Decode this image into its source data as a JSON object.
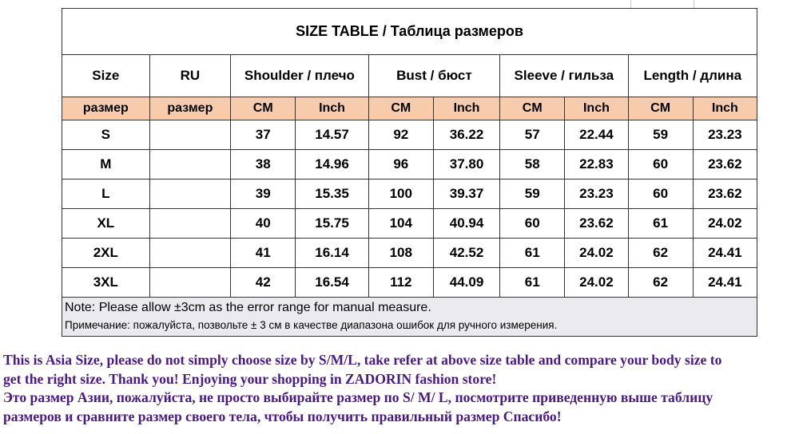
{
  "title": "SIZE TABLE  / Таблица размеров",
  "headers": [
    "Size",
    "RU",
    "Shoulder / плечо",
    "Bust / бюст",
    "Sleeve / гильза",
    "Length / длина"
  ],
  "units": [
    "размер",
    "размер",
    "CM",
    "Inch",
    "CM",
    "Inch",
    "CM",
    "Inch",
    "CM",
    "Inch"
  ],
  "rows": [
    [
      "S",
      "",
      "37",
      "14.57",
      "92",
      "36.22",
      "57",
      "22.44",
      "59",
      "23.23"
    ],
    [
      "M",
      "",
      "38",
      "14.96",
      "96",
      "37.80",
      "58",
      "22.83",
      "60",
      "23.62"
    ],
    [
      "L",
      "",
      "39",
      "15.35",
      "100",
      "39.37",
      "59",
      "23.23",
      "60",
      "23.62"
    ],
    [
      "XL",
      "",
      "40",
      "15.75",
      "104",
      "40.94",
      "60",
      "23.62",
      "61",
      "24.02"
    ],
    [
      "2XL",
      "",
      "41",
      "16.14",
      "108",
      "42.52",
      "61",
      "24.02",
      "62",
      "24.41"
    ],
    [
      "3XL",
      "",
      "42",
      "16.54",
      "112",
      "44.09",
      "61",
      "24.02",
      "62",
      "24.41"
    ]
  ],
  "note": {
    "en": "Note: Please allow ±3cm as the error range for manual measure.",
    "ru": "Примечание: пожалуйста, позвольте ± 3 см в качестве диапазона ошибок для ручного измерения."
  },
  "footer": [
    "This is Asia Size, please do not simply choose size by S/M/L, take refer at above size table and compare your body size to",
    "get the right size. Thank you!  Enjoying your shopping in ZADORIN fashion store!",
    "Это размер Азии, пожалуйста, не просто выбирайте размер по S/ M/ L, посмотрите приведенную выше таблицу",
    "размеров и сравните размер своего тела, чтобы получить правильный размер Спасибо!"
  ]
}
